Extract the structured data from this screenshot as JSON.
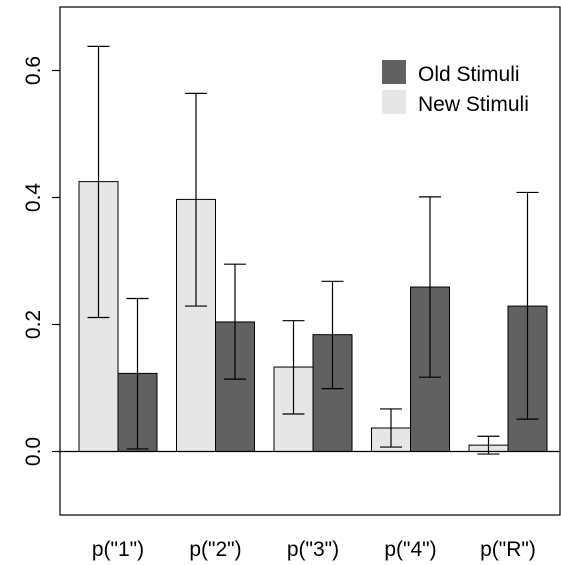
{
  "chart_data": {
    "type": "bar",
    "categories": [
      "p(\"1\")",
      "p(\"2\")",
      "p(\"3\")",
      "p(\"4\")",
      "p(\"R\")"
    ],
    "series": [
      {
        "name": "New Stimuli",
        "color": "#e6e6e6",
        "values": [
          0.425,
          0.397,
          0.133,
          0.037,
          0.01
        ],
        "err_low": [
          0.211,
          0.229,
          0.059,
          0.007,
          -0.004
        ],
        "err_high": [
          0.638,
          0.564,
          0.206,
          0.067,
          0.024
        ]
      },
      {
        "name": "Old Stimuli",
        "color": "#616161",
        "values": [
          0.123,
          0.204,
          0.184,
          0.259,
          0.229
        ],
        "err_low": [
          0.004,
          0.114,
          0.099,
          0.117,
          0.051
        ],
        "err_high": [
          0.241,
          0.295,
          0.268,
          0.401,
          0.408
        ]
      }
    ],
    "y_ticks": [
      "0.0",
      "0.2",
      "0.4",
      "0.6"
    ],
    "y_tick_values": [
      0,
      0.2,
      0.4,
      0.6
    ],
    "ylim": [
      -0.1,
      0.7
    ],
    "legend": {
      "position": "top-right",
      "items": [
        "Old Stimuli",
        "New Stimuli"
      ]
    }
  }
}
